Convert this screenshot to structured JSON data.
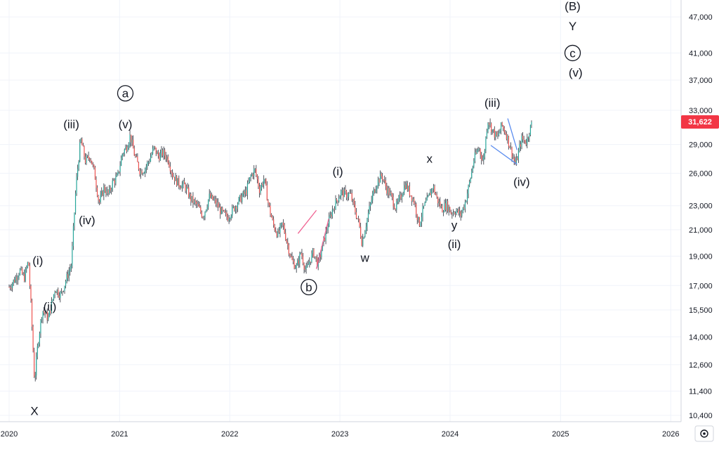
{
  "chart_data": {
    "type": "candlestick",
    "y_scale": "log",
    "grid": true,
    "ylim": [
      10000,
      52000
    ],
    "price_ticks": [
      "47,000",
      "41,000",
      "37,000",
      "33,000",
      "29,000",
      "26,000",
      "23,000",
      "21,000",
      "19,000",
      "17,000",
      "15,500",
      "14,000",
      "12,600",
      "11,400",
      "10,400"
    ],
    "year_ticks": [
      "2020",
      "2021",
      "2022",
      "2023",
      "2024",
      "2025",
      "2026"
    ],
    "current_price": "31,622",
    "colors": {
      "up": "#26a69a",
      "down": "#ef5350",
      "candle": "#2a2e39",
      "badge": "#f23645",
      "grid": "#f0f3fa",
      "pink_line": "#f06292",
      "blue_line": "#5b8def"
    },
    "price_path": [
      [
        "2020-01-01",
        16900
      ],
      [
        "2020-01-20",
        17400
      ],
      [
        "2020-02-05",
        18000
      ],
      [
        "2020-02-20",
        17500
      ],
      [
        "2020-03-05",
        18700
      ],
      [
        "2020-03-15",
        15200
      ],
      [
        "2020-03-25",
        11800
      ],
      [
        "2020-04-05",
        13600
      ],
      [
        "2020-04-20",
        15500
      ],
      [
        "2020-05-10",
        15000
      ],
      [
        "2020-06-01",
        16800
      ],
      [
        "2020-06-20",
        16400
      ],
      [
        "2020-07-10",
        17500
      ],
      [
        "2020-07-25",
        18400
      ],
      [
        "2020-08-10",
        25000
      ],
      [
        "2020-08-25",
        29600
      ],
      [
        "2020-09-10",
        27200
      ],
      [
        "2020-09-25",
        27800
      ],
      [
        "2020-10-10",
        26000
      ],
      [
        "2020-10-25",
        23200
      ],
      [
        "2020-11-10",
        24600
      ],
      [
        "2020-11-25",
        24000
      ],
      [
        "2020-12-10",
        25200
      ],
      [
        "2020-12-25",
        25600
      ],
      [
        "2021-01-10",
        28000
      ],
      [
        "2021-01-25",
        28800
      ],
      [
        "2021-02-05",
        30000
      ],
      [
        "2021-02-20",
        27800
      ],
      [
        "2021-03-10",
        26200
      ],
      [
        "2021-03-25",
        26400
      ],
      [
        "2021-04-10",
        27400
      ],
      [
        "2021-04-25",
        28600
      ],
      [
        "2021-05-10",
        27700
      ],
      [
        "2021-05-25",
        28100
      ],
      [
        "2021-06-10",
        27500
      ],
      [
        "2021-06-25",
        25900
      ],
      [
        "2021-07-15",
        25000
      ],
      [
        "2021-08-05",
        24800
      ],
      [
        "2021-08-25",
        23600
      ],
      [
        "2021-09-15",
        23000
      ],
      [
        "2021-10-05",
        22100
      ],
      [
        "2021-10-25",
        23800
      ],
      [
        "2021-11-15",
        23300
      ],
      [
        "2021-12-05",
        22400
      ],
      [
        "2021-12-25",
        22000
      ],
      [
        "2022-01-15",
        22800
      ],
      [
        "2022-02-05",
        23600
      ],
      [
        "2022-02-25",
        24300
      ],
      [
        "2022-03-10",
        25600
      ],
      [
        "2022-03-25",
        26400
      ],
      [
        "2022-04-10",
        24400
      ],
      [
        "2022-04-25",
        25500
      ],
      [
        "2022-05-10",
        23000
      ],
      [
        "2022-05-25",
        21400
      ],
      [
        "2022-06-10",
        20600
      ],
      [
        "2022-06-25",
        21500
      ],
      [
        "2022-07-10",
        20000
      ],
      [
        "2022-07-25",
        18700
      ],
      [
        "2022-08-10",
        18200
      ],
      [
        "2022-08-25",
        19300
      ],
      [
        "2022-09-10",
        17900
      ],
      [
        "2022-09-25",
        18800
      ],
      [
        "2022-10-05",
        19300
      ],
      [
        "2022-10-20",
        18400
      ],
      [
        "2022-11-05",
        19800
      ],
      [
        "2022-11-20",
        21200
      ],
      [
        "2022-12-05",
        22500
      ],
      [
        "2022-12-20",
        23400
      ],
      [
        "2023-01-05",
        24200
      ],
      [
        "2023-01-20",
        24000
      ],
      [
        "2023-02-05",
        24000
      ],
      [
        "2023-02-20",
        22600
      ],
      [
        "2023-03-05",
        21500
      ],
      [
        "2023-03-15",
        20000
      ],
      [
        "2023-04-05",
        22300
      ],
      [
        "2023-04-20",
        24000
      ],
      [
        "2023-05-05",
        25200
      ],
      [
        "2023-05-20",
        25800
      ],
      [
        "2023-06-05",
        24500
      ],
      [
        "2023-06-20",
        23800
      ],
      [
        "2023-07-05",
        22800
      ],
      [
        "2023-07-20",
        23700
      ],
      [
        "2023-08-05",
        25000
      ],
      [
        "2023-08-20",
        24200
      ],
      [
        "2023-09-05",
        23300
      ],
      [
        "2023-09-20",
        21400
      ],
      [
        "2023-10-05",
        22800
      ],
      [
        "2023-10-20",
        23600
      ],
      [
        "2023-11-05",
        24800
      ],
      [
        "2023-11-20",
        23500
      ],
      [
        "2023-12-05",
        22700
      ],
      [
        "2023-12-20",
        23100
      ],
      [
        "2024-01-05",
        22400
      ],
      [
        "2024-01-20",
        22600
      ],
      [
        "2024-02-05",
        22200
      ],
      [
        "2024-02-20",
        23300
      ],
      [
        "2024-03-05",
        25000
      ],
      [
        "2024-03-20",
        27400
      ],
      [
        "2024-04-05",
        28700
      ],
      [
        "2024-04-20",
        27100
      ],
      [
        "2024-05-05",
        31900
      ],
      [
        "2024-05-20",
        30600
      ],
      [
        "2024-06-05",
        29700
      ],
      [
        "2024-06-20",
        31200
      ],
      [
        "2024-07-05",
        30200
      ],
      [
        "2024-07-20",
        28500
      ],
      [
        "2024-08-05",
        26800
      ],
      [
        "2024-08-15",
        28200
      ],
      [
        "2024-08-25",
        29600
      ],
      [
        "2024-09-10",
        29300
      ],
      [
        "2024-09-20",
        30600
      ],
      [
        "2024-09-30",
        31622
      ]
    ],
    "annotations": [
      {
        "date": "2020-03-25",
        "price": 10580,
        "text": "X"
      },
      {
        "date": "2020-04-05",
        "price": 18700,
        "text": "(i)"
      },
      {
        "date": "2020-05-15",
        "price": 15700,
        "text": "(ii)"
      },
      {
        "date": "2020-07-25",
        "price": 31350,
        "text": "(iii)"
      },
      {
        "date": "2020-09-15",
        "price": 21800,
        "text": "(iv)"
      },
      {
        "date": "2021-01-20",
        "price": 31350,
        "text": "(v)"
      },
      {
        "date": "2021-01-20",
        "price": 35200,
        "text": "a",
        "circled": true
      },
      {
        "date": "2022-09-20",
        "price": 16900,
        "text": "b",
        "circled": true
      },
      {
        "date": "2022-12-25",
        "price": 26200,
        "text": "(i)"
      },
      {
        "date": "2023-03-25",
        "price": 18900,
        "text": "w"
      },
      {
        "date": "2023-10-25",
        "price": 27500,
        "text": "x"
      },
      {
        "date": "2024-01-15",
        "price": 21400,
        "text": "y"
      },
      {
        "date": "2024-01-15",
        "price": 19900,
        "text": "(ii)"
      },
      {
        "date": "2024-05-20",
        "price": 34000,
        "text": "(iii)"
      },
      {
        "date": "2024-08-25",
        "price": 25200,
        "text": "(iv)"
      },
      {
        "date": "2025-02-10",
        "price": 49000,
        "text": "(B)"
      },
      {
        "date": "2025-02-10",
        "price": 45400,
        "text": "Y"
      },
      {
        "date": "2025-02-10",
        "price": 41000,
        "text": "c",
        "circled": true
      },
      {
        "date": "2025-02-20",
        "price": 38100,
        "text": "(v)"
      }
    ],
    "trendlines": [
      {
        "color": "pink",
        "from": [
          "2022-08-15",
          20700
        ],
        "to": [
          "2022-10-15",
          22600
        ]
      },
      {
        "color": "pink",
        "from": [
          "2022-10-15",
          18100
        ],
        "to": [
          "2022-11-25",
          21900
        ]
      },
      {
        "color": "blue",
        "from": [
          "2024-05-15",
          28900
        ],
        "to": [
          "2024-08-10",
          26900
        ]
      },
      {
        "color": "blue",
        "from": [
          "2024-07-10",
          32000
        ],
        "to": [
          "2024-08-10",
          28400
        ]
      }
    ]
  }
}
